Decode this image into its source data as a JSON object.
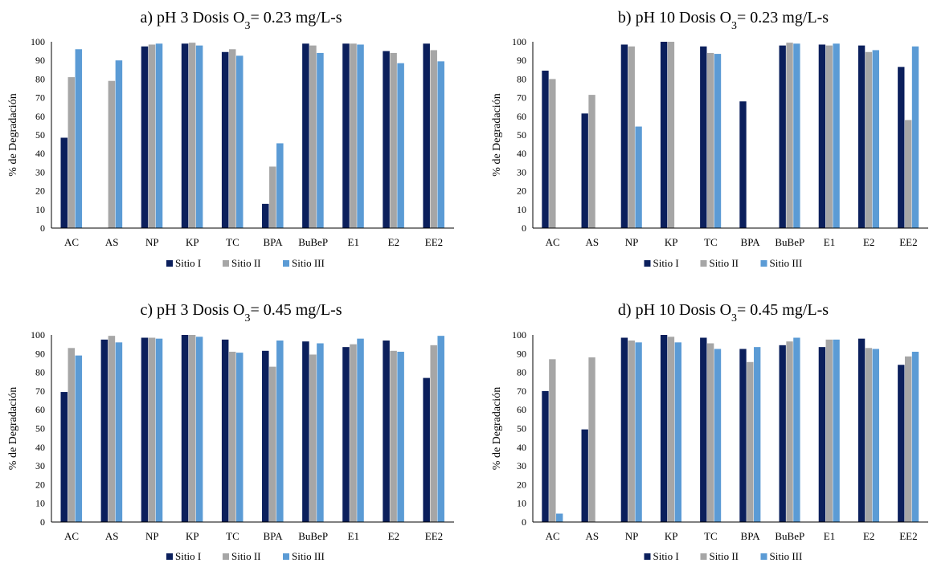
{
  "legend_labels": [
    "Sitio I",
    "Sitio II",
    "Sitio III"
  ],
  "series_colors": [
    "#0b1f5c",
    "#a6a6a6",
    "#5b9bd5"
  ],
  "chart_data": [
    {
      "type": "bar",
      "title": {
        "prefix": "a) pH 3  Dosis O",
        "sub": "3",
        "suffix": "= 0.23 mg/L-s"
      },
      "ylabel": "% de Degradación",
      "ylim": [
        0,
        100
      ],
      "yticks": [
        "0",
        "10",
        "20",
        "30",
        "40",
        "50",
        "60",
        "70",
        "80",
        "90",
        "100"
      ],
      "legend": "bottom",
      "categories": [
        "AC",
        "AS",
        "NP",
        "KP",
        "TC",
        "BPA",
        "BuBeP",
        "E1",
        "E2",
        "EE2"
      ],
      "series": [
        {
          "name": "Sitio I",
          "values": [
            48.5,
            0,
            97.5,
            99,
            94.5,
            13,
            99,
            99,
            95,
            99
          ]
        },
        {
          "name": "Sitio II",
          "values": [
            81,
            79,
            98.5,
            99.5,
            96,
            33,
            98,
            99,
            94,
            95.5
          ]
        },
        {
          "name": "Sitio III",
          "values": [
            96,
            90,
            99,
            98,
            92.5,
            45.5,
            94,
            98.5,
            88.5,
            89.5
          ]
        }
      ]
    },
    {
      "type": "bar",
      "title": {
        "prefix": "b) pH 10 Dosis O",
        "sub": "3",
        "suffix": "= 0.23 mg/L-s"
      },
      "ylabel": "% de Degradación",
      "ylim": [
        0,
        100
      ],
      "yticks": [
        "0",
        "10",
        "20",
        "30",
        "40",
        "50",
        "60",
        "70",
        "80",
        "90",
        "100"
      ],
      "legend": "bottom",
      "categories": [
        "AC",
        "AS",
        "NP",
        "KP",
        "TC",
        "BPA",
        "BuBeP",
        "E1",
        "E2",
        "EE2"
      ],
      "series": [
        {
          "name": "Sitio I",
          "values": [
            84.5,
            61.5,
            98.5,
            100,
            97.5,
            68,
            98,
            98.5,
            98,
            86.5
          ]
        },
        {
          "name": "Sitio II",
          "values": [
            80,
            71.5,
            97.5,
            100,
            94,
            0,
            99.5,
            98,
            94.5,
            58
          ]
        },
        {
          "name": "Sitio III",
          "values": [
            0,
            0,
            54.5,
            0,
            93.5,
            0,
            99,
            99,
            95.5,
            97.5
          ]
        }
      ]
    },
    {
      "type": "bar",
      "title": {
        "prefix": "c) pH 3 Dosis O",
        "sub": "3",
        "suffix": "= 0.45 mg/L-s"
      },
      "ylabel": "% de Degradación",
      "ylim": [
        0,
        100
      ],
      "yticks": [
        "0",
        "10",
        "20",
        "30",
        "40",
        "50",
        "60",
        "70",
        "80",
        "90",
        "100"
      ],
      "legend": "bottom",
      "categories": [
        "AC",
        "AS",
        "NP",
        "KP",
        "TC",
        "BPA",
        "BuBeP",
        "E1",
        "E2",
        "EE2"
      ],
      "series": [
        {
          "name": "Sitio I",
          "values": [
            69.5,
            97.5,
            98.5,
            100,
            97.5,
            91.5,
            96.5,
            93.5,
            97,
            77
          ]
        },
        {
          "name": "Sitio II",
          "values": [
            93,
            99.5,
            98.5,
            100,
            91,
            83,
            89.5,
            95,
            91.5,
            94.5
          ]
        },
        {
          "name": "Sitio III",
          "values": [
            89,
            96,
            98,
            99,
            90.5,
            97,
            95.5,
            98,
            91,
            99.5
          ]
        }
      ]
    },
    {
      "type": "bar",
      "title": {
        "prefix": "d) pH 10 Dosis O",
        "sub": "3",
        "suffix": "= 0.45 mg/L-s"
      },
      "ylabel": "% de Degradación",
      "ylim": [
        0,
        100
      ],
      "yticks": [
        "0",
        "10",
        "20",
        "30",
        "40",
        "50",
        "60",
        "70",
        "80",
        "90",
        "100"
      ],
      "legend": "bottom",
      "categories": [
        "AC",
        "AS",
        "NP",
        "KP",
        "TC",
        "BPA",
        "BuBeP",
        "E1",
        "E2",
        "EE2"
      ],
      "series": [
        {
          "name": "Sitio I",
          "values": [
            70,
            49.5,
            98.5,
            100,
            98.5,
            92.5,
            94.5,
            93.5,
            98,
            84
          ]
        },
        {
          "name": "Sitio II",
          "values": [
            87,
            88,
            97,
            99,
            95.5,
            85.5,
            96.5,
            97.5,
            93,
            88.5
          ]
        },
        {
          "name": "Sitio III",
          "values": [
            4.5,
            0,
            96,
            96,
            92.5,
            93.5,
            98.5,
            97.5,
            92.5,
            91
          ]
        }
      ]
    }
  ]
}
